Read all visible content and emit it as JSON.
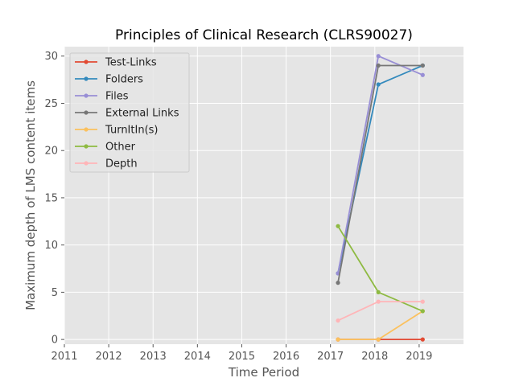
{
  "chart_data": {
    "type": "line",
    "title": "Principles of Clinical Research (CLRS90027)",
    "xlabel": "Time Period",
    "ylabel": "Maximum depth of LMS content items",
    "xlim": [
      2011,
      2020
    ],
    "ylim": [
      -0.5,
      31
    ],
    "xticks": [
      "2011",
      "2012",
      "2013",
      "2014",
      "2015",
      "2016",
      "2017",
      "2018",
      "2019"
    ],
    "yticks": [
      "0",
      "5",
      "10",
      "15",
      "20",
      "25",
      "30"
    ],
    "grid": true,
    "legend_position": "upper-left",
    "series": [
      {
        "name": "Test-Links",
        "color": "#e24a33",
        "x": [
          2017.17,
          2018.08,
          2019.08
        ],
        "y": [
          0,
          0,
          0
        ]
      },
      {
        "name": "Folders",
        "color": "#348abd",
        "x": [
          2017.17,
          2018.08,
          2019.08
        ],
        "y": [
          7,
          27,
          29
        ]
      },
      {
        "name": "Files",
        "color": "#988ed5",
        "x": [
          2017.17,
          2018.08,
          2019.08
        ],
        "y": [
          7,
          30,
          28
        ]
      },
      {
        "name": "External Links",
        "color": "#777777",
        "x": [
          2017.17,
          2018.08,
          2019.08
        ],
        "y": [
          6,
          29,
          29
        ]
      },
      {
        "name": "TurnItIn(s)",
        "color": "#fbc15e",
        "x": [
          2017.17,
          2018.08,
          2019.08
        ],
        "y": [
          0,
          0,
          3
        ]
      },
      {
        "name": "Other",
        "color": "#8eba42",
        "x": [
          2017.17,
          2018.08,
          2019.08
        ],
        "y": [
          12,
          5,
          3
        ]
      },
      {
        "name": "Depth",
        "color": "#ffb5b8",
        "x": [
          2017.17,
          2018.08,
          2019.08
        ],
        "y": [
          2,
          4,
          4
        ]
      }
    ]
  }
}
